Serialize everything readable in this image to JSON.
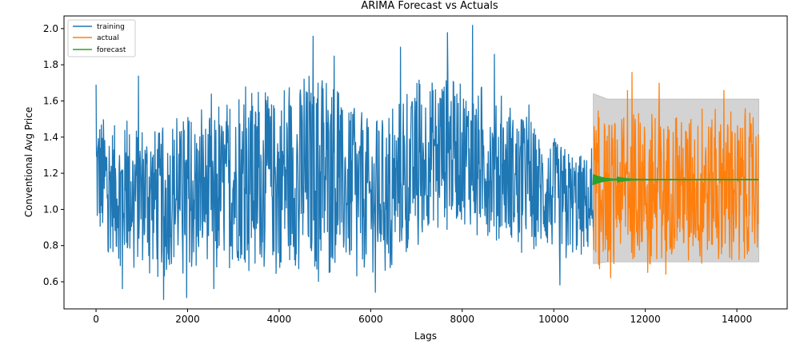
{
  "chart_data": {
    "type": "line",
    "title": "ARIMA Forecast vs Actuals",
    "xlabel": "Lags",
    "ylabel": "Conventional Avg Price",
    "xlim": [
      -700,
      15100
    ],
    "ylim": [
      0.45,
      2.07
    ],
    "x_ticks": [
      0,
      2000,
      4000,
      6000,
      8000,
      10000,
      12000,
      14000
    ],
    "x_tick_labels": [
      "0",
      "2000",
      "4000",
      "6000",
      "8000",
      "10000",
      "12000",
      "14000"
    ],
    "y_ticks": [
      0.6,
      0.8,
      1.0,
      1.2,
      1.4,
      1.6,
      1.8,
      2.0
    ],
    "y_tick_labels": [
      "0.6",
      "0.8",
      "1.0",
      "1.2",
      "1.4",
      "1.6",
      "1.8",
      "2.0"
    ],
    "grid": false,
    "legend_position": "top-left",
    "series": [
      {
        "name": "training",
        "color": "#1f77b4",
        "x_range": [
          0,
          10864
        ],
        "summary": {
          "min": 0.51,
          "max": 2.02,
          "typical_low": 0.8,
          "typical_high": 1.5
        },
        "envelope_x": [
          0,
          500,
          1000,
          1500,
          2000,
          2500,
          3000,
          3500,
          4000,
          4500,
          5000,
          5500,
          6000,
          6500,
          7000,
          7500,
          8000,
          8500,
          9000,
          9500,
          10000,
          10500,
          10864
        ],
        "envelope_low": [
          0.85,
          0.72,
          0.7,
          0.68,
          0.7,
          0.72,
          0.7,
          0.72,
          0.7,
          0.68,
          0.7,
          0.68,
          0.66,
          0.74,
          0.85,
          0.95,
          0.92,
          0.88,
          0.84,
          0.8,
          0.76,
          0.74,
          0.76
        ],
        "envelope_high": [
          1.55,
          1.45,
          1.5,
          1.42,
          1.48,
          1.5,
          1.55,
          1.6,
          1.62,
          1.7,
          1.65,
          1.55,
          1.45,
          1.5,
          1.65,
          1.75,
          1.7,
          1.62,
          1.55,
          1.45,
          1.38,
          1.32,
          1.28
        ],
        "spikes": [
          {
            "x": 0,
            "y": 1.69
          },
          {
            "x": 130,
            "y": 0.98
          },
          {
            "x": 580,
            "y": 0.56
          },
          {
            "x": 930,
            "y": 1.74
          },
          {
            "x": 1480,
            "y": 0.5
          },
          {
            "x": 1980,
            "y": 0.51
          },
          {
            "x": 2520,
            "y": 1.64
          },
          {
            "x": 2570,
            "y": 0.56
          },
          {
            "x": 3270,
            "y": 1.68
          },
          {
            "x": 4740,
            "y": 1.96
          },
          {
            "x": 4860,
            "y": 0.6
          },
          {
            "x": 5200,
            "y": 1.85
          },
          {
            "x": 6100,
            "y": 0.54
          },
          {
            "x": 6650,
            "y": 1.9
          },
          {
            "x": 7680,
            "y": 1.98
          },
          {
            "x": 8230,
            "y": 2.02
          },
          {
            "x": 8700,
            "y": 1.86
          },
          {
            "x": 9300,
            "y": 0.76
          },
          {
            "x": 9460,
            "y": 1.58
          },
          {
            "x": 10130,
            "y": 0.58
          },
          {
            "x": 10600,
            "y": 0.75
          }
        ]
      },
      {
        "name": "actual",
        "color": "#ff7f0e",
        "x_range": [
          10864,
          14481
        ],
        "summary": {
          "min": 0.62,
          "max": 1.76,
          "typical_low": 0.75,
          "typical_high": 1.5
        },
        "spikes": [
          {
            "x": 11000,
            "y": 0.67
          },
          {
            "x": 11240,
            "y": 0.62
          },
          {
            "x": 11610,
            "y": 1.66
          },
          {
            "x": 11710,
            "y": 1.76
          },
          {
            "x": 12050,
            "y": 0.65
          },
          {
            "x": 12300,
            "y": 1.7
          },
          {
            "x": 12450,
            "y": 0.64
          },
          {
            "x": 13000,
            "y": 1.5
          },
          {
            "x": 13720,
            "y": 1.66
          },
          {
            "x": 14050,
            "y": 0.72
          },
          {
            "x": 14480,
            "y": 1.45
          }
        ]
      },
      {
        "name": "forecast",
        "color": "#2ca02c",
        "x_range": [
          10864,
          14481
        ],
        "level": 1.165,
        "initial_oscillation": [
          1.14,
          1.2
        ],
        "confidence_band": {
          "lower": 0.71,
          "upper": 1.61,
          "color": "#d3d3d3",
          "initial_upper": 1.64,
          "initial_lower": 0.7
        }
      }
    ]
  }
}
